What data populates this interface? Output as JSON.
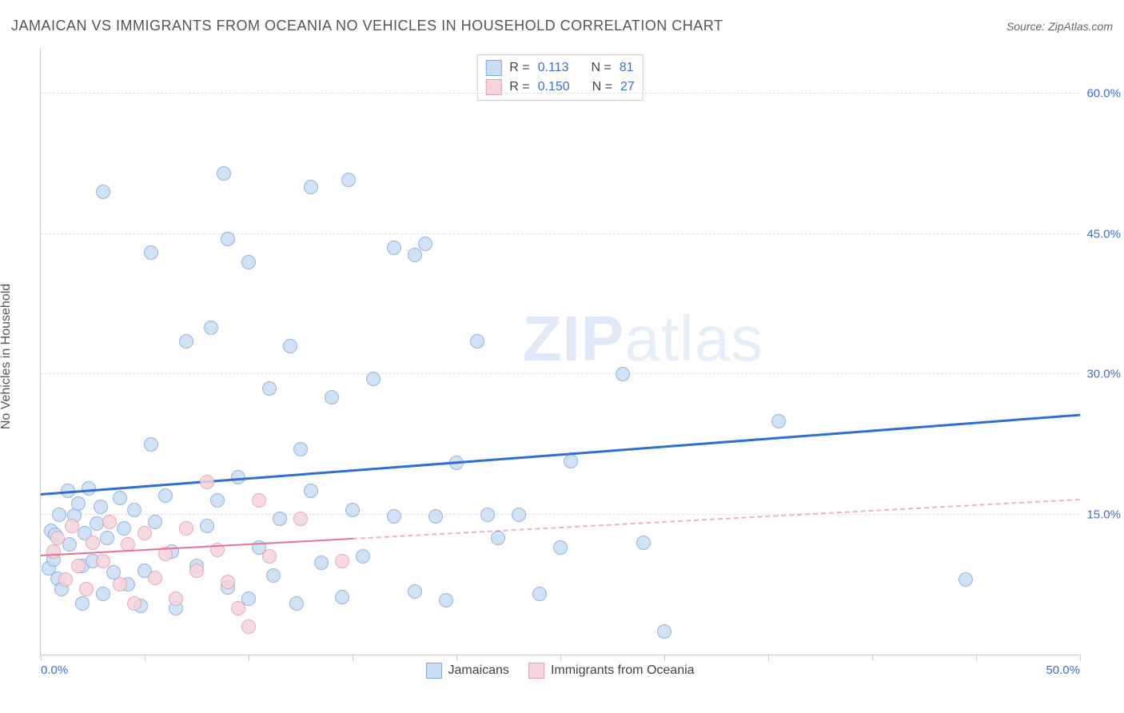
{
  "title": "JAMAICAN VS IMMIGRANTS FROM OCEANIA NO VEHICLES IN HOUSEHOLD CORRELATION CHART",
  "source_label": "Source: ",
  "source_name": "ZipAtlas.com",
  "ylabel": "No Vehicles in Household",
  "watermark_bold": "ZIP",
  "watermark_light": "atlas",
  "chart": {
    "type": "scatter",
    "xlim": [
      0,
      50
    ],
    "ylim": [
      0,
      65
    ],
    "y_ticks": [
      15,
      30,
      45,
      60
    ],
    "y_tick_labels": [
      "15.0%",
      "30.0%",
      "45.0%",
      "60.0%"
    ],
    "x_ticks": [
      0,
      5,
      10,
      15,
      20,
      25,
      30,
      35,
      40,
      45,
      50
    ],
    "x_tick_labels": {
      "0": "0.0%",
      "50": "50.0%"
    },
    "grid_color": "#dddddd",
    "axis_color": "#cccccc",
    "background_color": "#ffffff",
    "label_color": "#3b6fd6",
    "marker_radius": 9,
    "marker_border_width": 1.5,
    "series": [
      {
        "name": "Jamaicans",
        "fill": "#c9ddf4",
        "stroke": "#7fa9e0",
        "trend_color": "#2f6fd0",
        "trend_width": 3,
        "R": "0.113",
        "N": "81",
        "trend": {
          "x1": 0,
          "y1": 17.0,
          "x2": 50,
          "y2": 25.5
        },
        "points": [
          [
            0.4,
            9.2
          ],
          [
            0.5,
            13.3
          ],
          [
            0.6,
            10.2
          ],
          [
            0.7,
            12.8
          ],
          [
            0.8,
            8.1
          ],
          [
            0.9,
            15.0
          ],
          [
            1.0,
            7.0
          ],
          [
            1.3,
            17.5
          ],
          [
            1.4,
            11.8
          ],
          [
            1.6,
            14.9
          ],
          [
            1.8,
            16.2
          ],
          [
            2.0,
            9.5
          ],
          [
            2.1,
            13.0
          ],
          [
            2.3,
            17.8
          ],
          [
            2.5,
            10.0
          ],
          [
            2.7,
            14.0
          ],
          [
            2.9,
            15.8
          ],
          [
            3.0,
            6.5
          ],
          [
            3.2,
            12.5
          ],
          [
            3.5,
            8.8
          ],
          [
            3.0,
            49.5
          ],
          [
            3.8,
            16.8
          ],
          [
            4.0,
            13.5
          ],
          [
            4.2,
            7.5
          ],
          [
            4.5,
            15.5
          ],
          [
            5.0,
            9.0
          ],
          [
            5.3,
            43.0
          ],
          [
            5.3,
            22.5
          ],
          [
            5.5,
            14.2
          ],
          [
            6.0,
            17.0
          ],
          [
            6.3,
            11.0
          ],
          [
            7.0,
            33.5
          ],
          [
            7.5,
            9.5
          ],
          [
            8.0,
            13.8
          ],
          [
            8.2,
            35.0
          ],
          [
            8.5,
            16.5
          ],
          [
            8.8,
            51.5
          ],
          [
            9.0,
            7.2
          ],
          [
            9.5,
            19.0
          ],
          [
            10.0,
            6.0
          ],
          [
            9.0,
            44.5
          ],
          [
            10.5,
            11.5
          ],
          [
            11.0,
            28.5
          ],
          [
            11.2,
            8.5
          ],
          [
            11.5,
            14.5
          ],
          [
            12.0,
            33.0
          ],
          [
            12.3,
            5.5
          ],
          [
            13.0,
            17.5
          ],
          [
            13.5,
            9.8
          ],
          [
            10.0,
            42.0
          ],
          [
            14.0,
            27.5
          ],
          [
            14.5,
            6.2
          ],
          [
            15.0,
            15.5
          ],
          [
            13.0,
            50.0
          ],
          [
            15.5,
            10.5
          ],
          [
            16.0,
            29.5
          ],
          [
            14.8,
            50.8
          ],
          [
            17.0,
            14.8
          ],
          [
            18.0,
            6.8
          ],
          [
            18.0,
            42.8
          ],
          [
            18.5,
            44.0
          ],
          [
            19.0,
            14.8
          ],
          [
            19.5,
            5.8
          ],
          [
            20.0,
            20.5
          ],
          [
            21.0,
            33.5
          ],
          [
            21.5,
            15.0
          ],
          [
            22.0,
            12.5
          ],
          [
            23.0,
            15.0
          ],
          [
            24.0,
            6.5
          ],
          [
            25.0,
            11.5
          ],
          [
            25.5,
            20.7
          ],
          [
            28.0,
            30.0
          ],
          [
            29.0,
            12.0
          ],
          [
            30.0,
            2.5
          ],
          [
            35.5,
            25.0
          ],
          [
            44.5,
            8.0
          ],
          [
            17.0,
            43.5
          ],
          [
            12.5,
            22.0
          ],
          [
            6.5,
            5.0
          ],
          [
            4.8,
            5.2
          ],
          [
            2.0,
            5.5
          ]
        ]
      },
      {
        "name": "Immigrants from Oceania",
        "fill": "#f6d4dc",
        "stroke": "#e59bb0",
        "trend_color": "#e57390",
        "trend_width": 2.5,
        "trend_dash_from": 15,
        "R": "0.150",
        "N": "27",
        "trend": {
          "x1": 0,
          "y1": 10.5,
          "x2": 50,
          "y2": 16.5
        },
        "points": [
          [
            0.6,
            11.0
          ],
          [
            0.8,
            12.5
          ],
          [
            1.2,
            8.0
          ],
          [
            1.5,
            13.8
          ],
          [
            1.8,
            9.5
          ],
          [
            2.2,
            7.0
          ],
          [
            2.5,
            12.0
          ],
          [
            3.0,
            10.0
          ],
          [
            3.3,
            14.2
          ],
          [
            3.8,
            7.5
          ],
          [
            4.2,
            11.8
          ],
          [
            4.5,
            5.5
          ],
          [
            5.0,
            13.0
          ],
          [
            5.5,
            8.2
          ],
          [
            6.0,
            10.8
          ],
          [
            6.5,
            6.0
          ],
          [
            7.0,
            13.5
          ],
          [
            7.5,
            9.0
          ],
          [
            8.0,
            18.5
          ],
          [
            8.5,
            11.2
          ],
          [
            9.0,
            7.8
          ],
          [
            9.5,
            5.0
          ],
          [
            10.5,
            16.5
          ],
          [
            11.0,
            10.5
          ],
          [
            12.5,
            14.5
          ],
          [
            14.5,
            10.0
          ],
          [
            10.0,
            3.0
          ]
        ]
      }
    ],
    "stats_labels": {
      "R": "R =",
      "N": "N ="
    },
    "legend_position": "top-center",
    "bottom_legend_position": "bottom-center"
  }
}
